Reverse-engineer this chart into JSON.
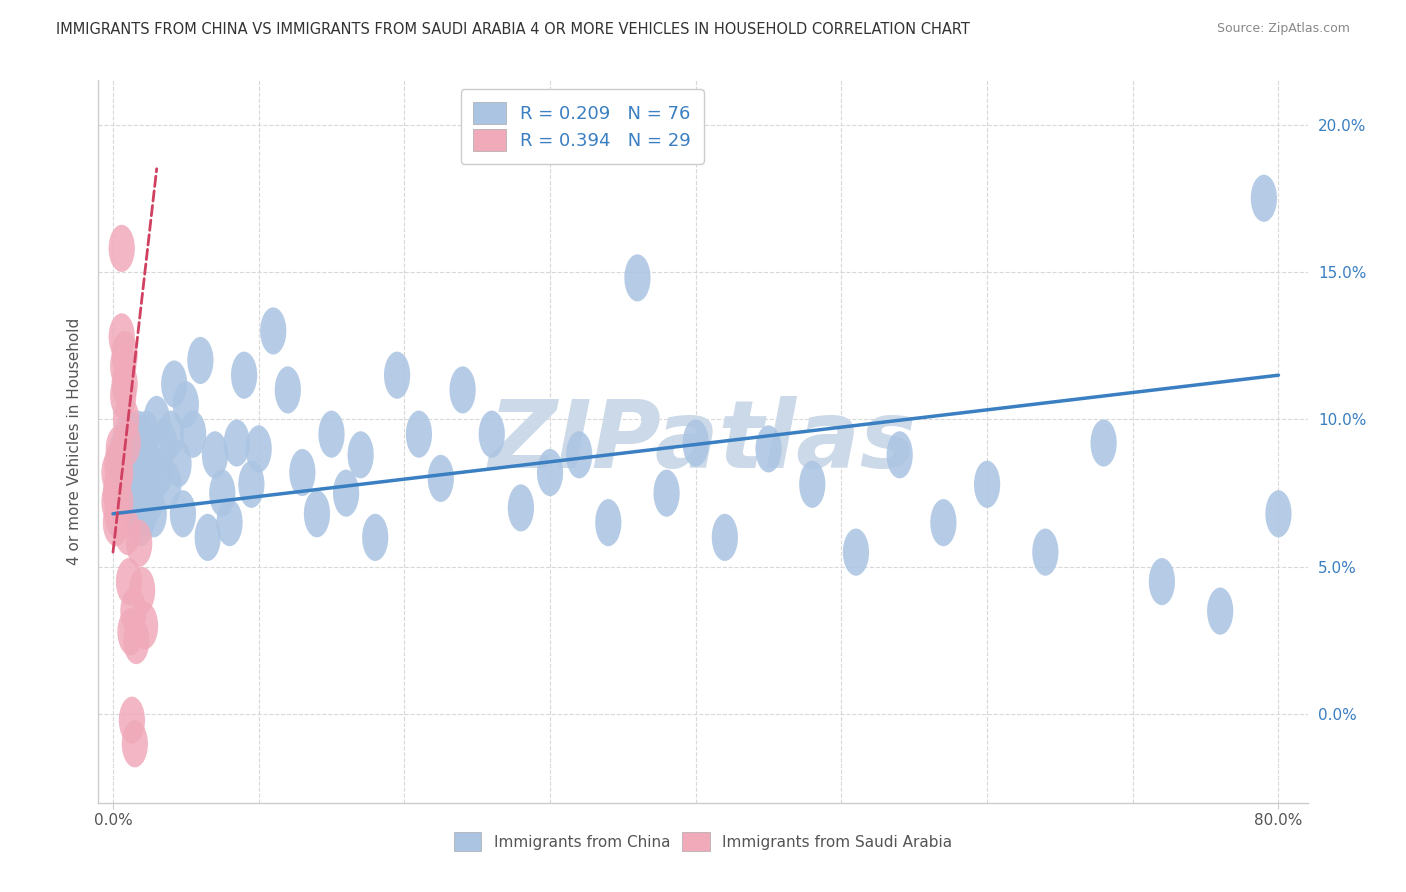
{
  "title": "IMMIGRANTS FROM CHINA VS IMMIGRANTS FROM SAUDI ARABIA 4 OR MORE VEHICLES IN HOUSEHOLD CORRELATION CHART",
  "source": "Source: ZipAtlas.com",
  "ylabel": "4 or more Vehicles in Household",
  "watermark": "ZIPatlas",
  "legend_china": "Immigrants from China",
  "legend_saudi": "Immigrants from Saudi Arabia",
  "r_china": 0.209,
  "n_china": 76,
  "r_saudi": 0.394,
  "n_saudi": 29,
  "xlim": [
    -0.01,
    0.82
  ],
  "ylim": [
    -0.03,
    0.215
  ],
  "xtick_positions": [
    0.0,
    0.8
  ],
  "xtick_labels": [
    "0.0%",
    "80.0%"
  ],
  "yticks": [
    0.0,
    0.05,
    0.1,
    0.15,
    0.2
  ],
  "background_color": "#ffffff",
  "grid_color": "#d8d8d8",
  "china_color": "#aac4e2",
  "saudi_color": "#f0aaba",
  "china_line_color": "#3a7fc1",
  "saudi_line_color": "#d04060",
  "title_color": "#333333",
  "axis_label_color": "#555555",
  "watermark_color": "#ccd9e8",
  "right_axis_color": "#3a7fc1",
  "china_trend_x0": 0.0,
  "china_trend_x1": 0.8,
  "china_trend_y0": 0.068,
  "china_trend_y1": 0.115,
  "saudi_trend_x0": 0.0,
  "saudi_trend_x1": 0.03,
  "saudi_trend_y0": 0.055,
  "saudi_trend_y1": 0.185,
  "china_x": [
    0.005,
    0.007,
    0.008,
    0.01,
    0.01,
    0.011,
    0.012,
    0.013,
    0.013,
    0.015,
    0.015,
    0.016,
    0.017,
    0.018,
    0.018,
    0.019,
    0.02,
    0.02,
    0.021,
    0.022,
    0.023,
    0.025,
    0.026,
    0.028,
    0.03,
    0.032,
    0.035,
    0.038,
    0.04,
    0.042,
    0.045,
    0.048,
    0.05,
    0.055,
    0.06,
    0.065,
    0.07,
    0.075,
    0.08,
    0.085,
    0.09,
    0.095,
    0.1,
    0.11,
    0.12,
    0.13,
    0.14,
    0.15,
    0.16,
    0.17,
    0.18,
    0.195,
    0.21,
    0.225,
    0.24,
    0.26,
    0.28,
    0.3,
    0.32,
    0.34,
    0.36,
    0.38,
    0.4,
    0.42,
    0.45,
    0.48,
    0.51,
    0.54,
    0.57,
    0.6,
    0.64,
    0.68,
    0.72,
    0.76,
    0.79,
    0.8
  ],
  "china_y": [
    0.085,
    0.09,
    0.08,
    0.095,
    0.075,
    0.088,
    0.082,
    0.078,
    0.092,
    0.07,
    0.085,
    0.079,
    0.095,
    0.072,
    0.088,
    0.065,
    0.091,
    0.078,
    0.083,
    0.069,
    0.095,
    0.085,
    0.073,
    0.068,
    0.1,
    0.082,
    0.092,
    0.078,
    0.095,
    0.112,
    0.085,
    0.068,
    0.105,
    0.095,
    0.12,
    0.06,
    0.088,
    0.075,
    0.065,
    0.092,
    0.115,
    0.078,
    0.09,
    0.13,
    0.11,
    0.082,
    0.068,
    0.095,
    0.075,
    0.088,
    0.06,
    0.115,
    0.095,
    0.08,
    0.11,
    0.095,
    0.07,
    0.082,
    0.088,
    0.065,
    0.148,
    0.075,
    0.092,
    0.06,
    0.09,
    0.078,
    0.055,
    0.088,
    0.065,
    0.078,
    0.055,
    0.092,
    0.045,
    0.035,
    0.175,
    0.068
  ],
  "saudi_x": [
    0.001,
    0.001,
    0.002,
    0.002,
    0.003,
    0.003,
    0.003,
    0.004,
    0.004,
    0.005,
    0.005,
    0.006,
    0.006,
    0.007,
    0.007,
    0.008,
    0.008,
    0.009,
    0.01,
    0.01,
    0.011,
    0.012,
    0.013,
    0.014,
    0.015,
    0.016,
    0.018,
    0.02,
    0.022
  ],
  "saudi_y": [
    0.082,
    0.072,
    0.075,
    0.065,
    0.085,
    0.078,
    0.068,
    0.09,
    0.08,
    0.082,
    0.072,
    0.158,
    0.128,
    0.118,
    0.108,
    0.122,
    0.112,
    0.1,
    0.092,
    0.062,
    0.045,
    0.028,
    -0.002,
    0.035,
    -0.01,
    0.025,
    0.058,
    0.042,
    0.03
  ]
}
